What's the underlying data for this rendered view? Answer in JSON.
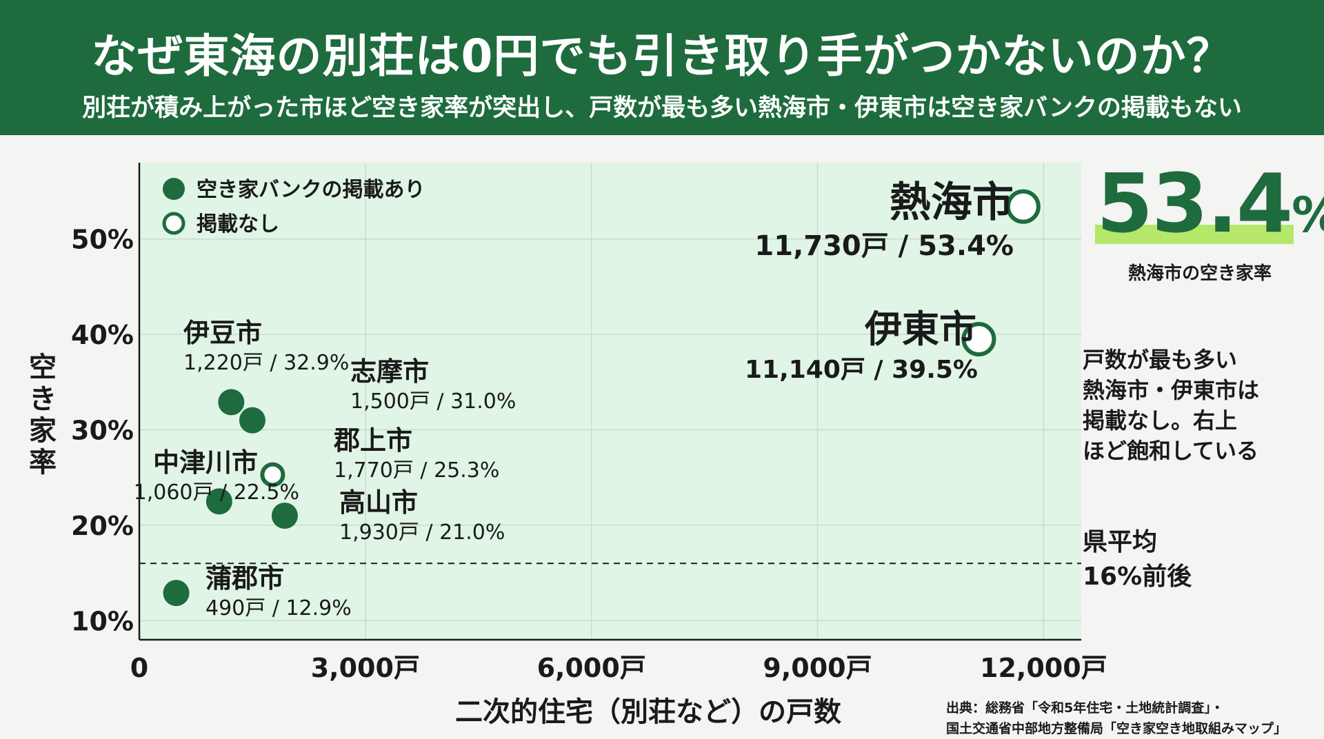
{
  "header": {
    "title": "なぜ東海の別荘は0円でも引き取り手がつかないのか？",
    "subtitle": "別荘が積み上がった市ほど空き家率が突出し、戸数が最も多い熱海市・伊東市は空き家バンクの掲載もない"
  },
  "colors": {
    "header_bg": "#1e6b3e",
    "plot_bg": "#e0f5e5",
    "marker": "#1e6b3e",
    "highlight": "#b5e76a"
  },
  "chart_data": {
    "type": "scatter",
    "xlabel": "二次的住宅（別荘など）の戸数",
    "ylabel": "空き家率",
    "xlim": [
      0,
      12500
    ],
    "ylim": [
      8,
      58
    ],
    "x_ticks": [
      {
        "value": 0,
        "label": "0"
      },
      {
        "value": 3000,
        "label": "3,000戸"
      },
      {
        "value": 6000,
        "label": "6,000戸"
      },
      {
        "value": 9000,
        "label": "9,000戸"
      },
      {
        "value": 12000,
        "label": "12,000戸"
      }
    ],
    "y_ticks": [
      {
        "value": 10,
        "label": "10%"
      },
      {
        "value": 20,
        "label": "20%"
      },
      {
        "value": 30,
        "label": "30%"
      },
      {
        "value": 40,
        "label": "40%"
      },
      {
        "value": 50,
        "label": "50%"
      }
    ],
    "grid": true,
    "legend": [
      {
        "marker": "filled",
        "label": "空き家バンクの掲載あり"
      },
      {
        "marker": "hollow",
        "label": "掲載なし"
      }
    ],
    "legend_position": "top-left",
    "reference_line": {
      "y": 16,
      "label_line1": "県平均",
      "label_line2": "16%前後"
    },
    "points": [
      {
        "name": "熱海市",
        "x": 11730,
        "y": 53.4,
        "label": "11,730戸 / 53.4%",
        "listed": false
      },
      {
        "name": "伊東市",
        "x": 11140,
        "y": 39.5,
        "label": "11,140戸 / 39.5%",
        "listed": false
      },
      {
        "name": "伊豆市",
        "x": 1220,
        "y": 32.9,
        "label": "1,220戸 / 32.9%",
        "listed": true
      },
      {
        "name": "志摩市",
        "x": 1500,
        "y": 31.0,
        "label": "1,500戸 / 31.0%",
        "listed": true
      },
      {
        "name": "郡上市",
        "x": 1770,
        "y": 25.3,
        "label": "1,770戸 / 25.3%",
        "listed": false
      },
      {
        "name": "中津川市",
        "x": 1060,
        "y": 22.5,
        "label": "1,060戸 / 22.5%",
        "listed": true
      },
      {
        "name": "高山市",
        "x": 1930,
        "y": 21.0,
        "label": "1,930戸 / 21.0%",
        "listed": true
      },
      {
        "name": "蒲郡市",
        "x": 490,
        "y": 12.9,
        "label": "490戸 / 12.9%",
        "listed": true
      }
    ]
  },
  "highlight": {
    "number": "53.4",
    "unit": "%",
    "caption": "熱海市の空き家率"
  },
  "note": {
    "line1": "戸数が最も多い",
    "line2": "熱海市・伊東市は",
    "line3": "掲載なし。右上",
    "line4": "ほど飽和している"
  },
  "source": {
    "line1": "出典：総務省「令和5年住宅・土地統計調査」・",
    "line2": "国土交通省中部地方整備局「空き家空き地取組みマップ」"
  }
}
